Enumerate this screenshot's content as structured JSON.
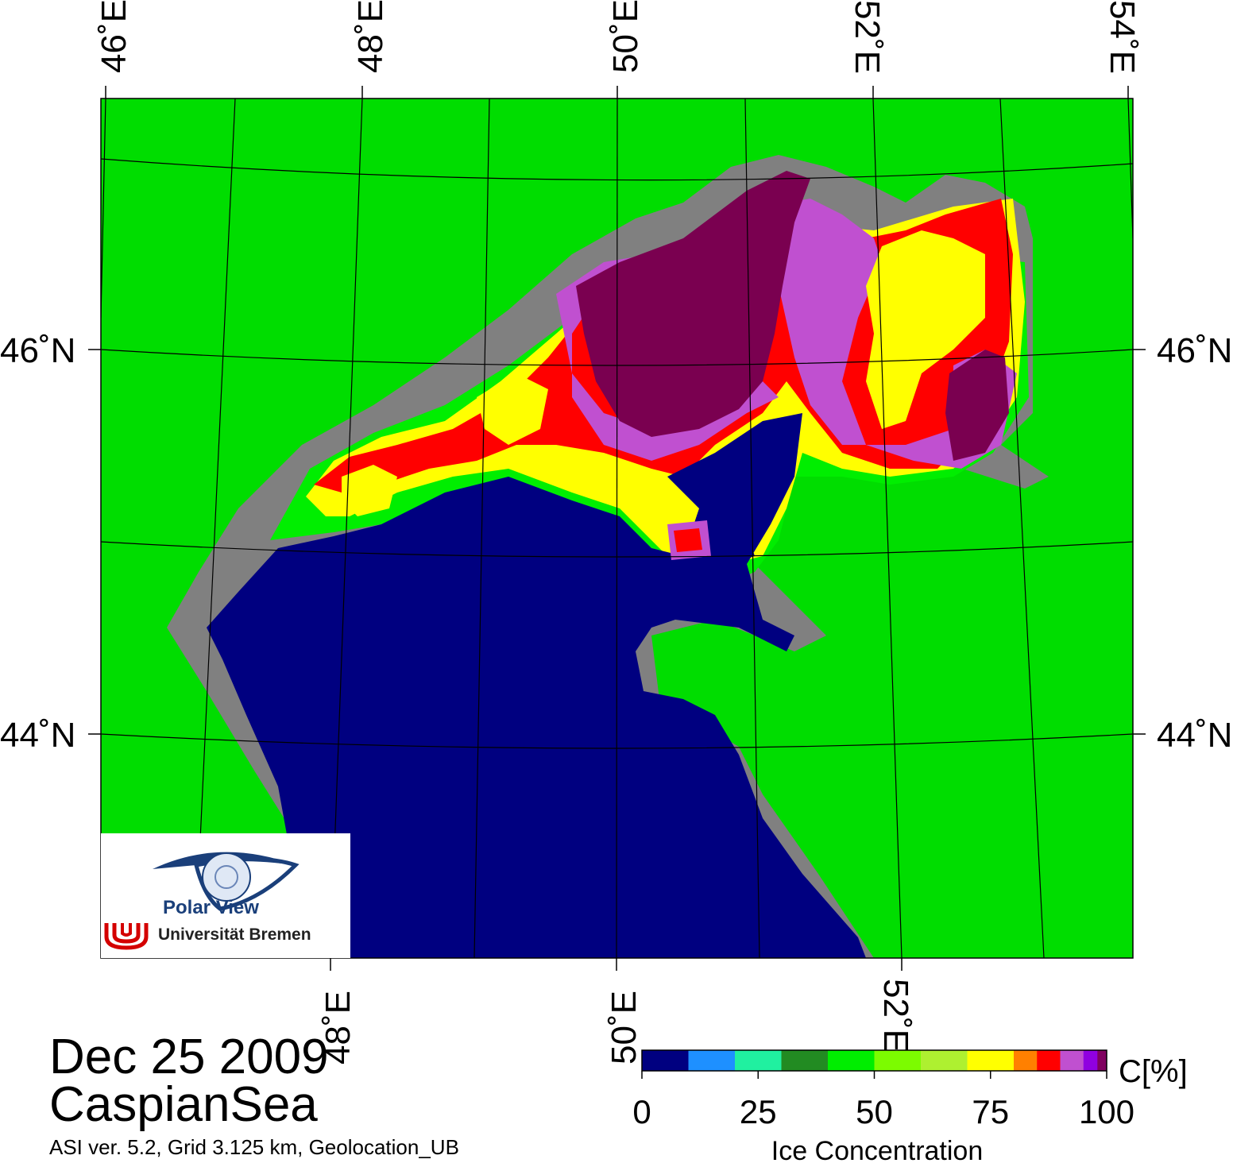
{
  "map": {
    "date": "Dec 25 2009",
    "region": "CaspianSea",
    "info_line": "ASI ver. 5.2,  Grid 3.125 km, Geolocation_UB",
    "top_lon_labels": [
      "46˚E",
      "48˚E",
      "50˚E",
      "52˚E",
      "54˚E"
    ],
    "bottom_lon_labels": [
      "48˚E",
      "50˚E",
      "52˚E"
    ],
    "left_lat_labels": [
      "46˚N",
      "44˚N"
    ],
    "right_lat_labels": [
      "46˚N",
      "44˚N"
    ],
    "colors": {
      "land": "#00dd00",
      "coast": "#808080",
      "water": "#000080",
      "ice_core": "#7a0050"
    }
  },
  "logo": {
    "name": "Polar View",
    "institution": "Universität Bremen",
    "icon": "eye-globe-icon",
    "uni_icon": "bremen-u-icon"
  },
  "colorbar": {
    "unit_label": "C[%]",
    "title": "Ice Concentration",
    "ticks": [
      "0",
      "25",
      "50",
      "75",
      "100"
    ],
    "colors": [
      "#000080",
      "#1e90ff",
      "#20f0a0",
      "#228b22",
      "#00ee00",
      "#7cfc00",
      "#aef030",
      "#ffff00",
      "#ff8000",
      "#ff0000",
      "#c050d0",
      "#9000e0",
      "#800060"
    ]
  }
}
